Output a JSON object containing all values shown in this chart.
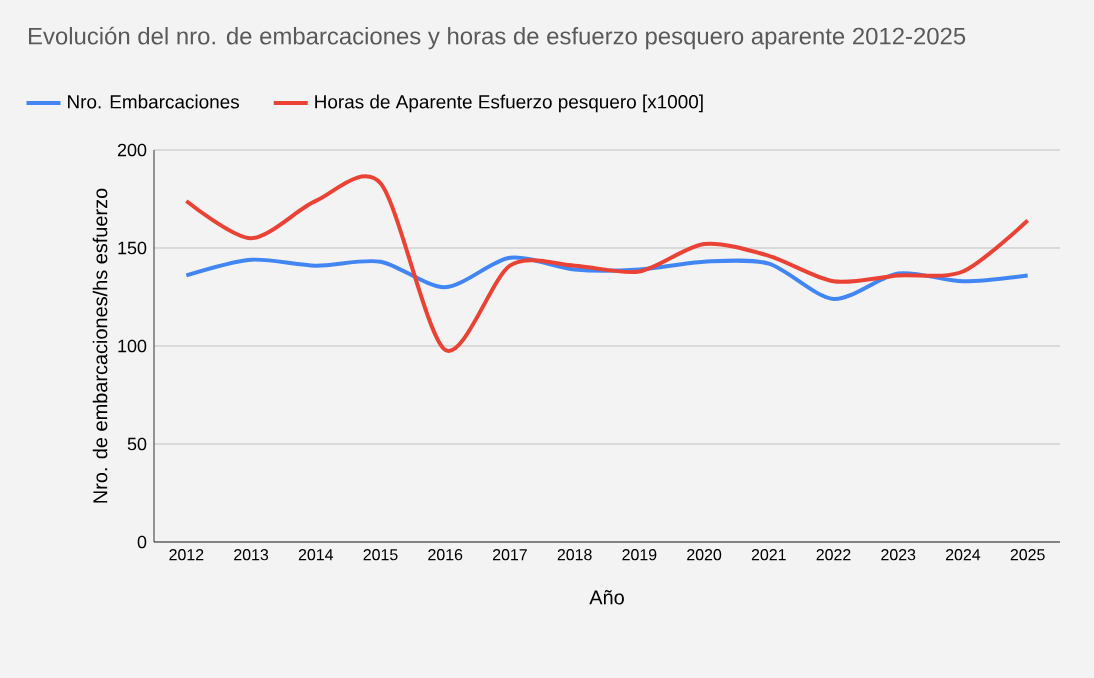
{
  "chart_data": {
    "type": "line",
    "title": "Evolución del nro. de embarcaciones y horas de esfuerzo pesquero aparente 2012-2025",
    "xlabel": "Año",
    "ylabel": "Nro. de embarcaciones/hs esfuerzo",
    "categories": [
      "2012",
      "2013",
      "2014",
      "2015",
      "2016",
      "2017",
      "2018",
      "2019",
      "2020",
      "2021",
      "2022",
      "2023",
      "2024",
      "2025"
    ],
    "series": [
      {
        "name": "Nro. Embarcaciones",
        "color": "#4285f4",
        "values": [
          136,
          144,
          141,
          143,
          130,
          145,
          139,
          139,
          143,
          142,
          124,
          137,
          133,
          136
        ]
      },
      {
        "name": "Horas de Aparente Esfuerzo pesquero [x1000]",
        "color": "#ea4335",
        "values": [
          174,
          155,
          174,
          183,
          98,
          141,
          141,
          138,
          152,
          146,
          133,
          136,
          138,
          164
        ]
      }
    ],
    "ylim": [
      0,
      200
    ],
    "yticks": [
      0,
      50,
      100,
      150,
      200
    ],
    "grid": "y",
    "legend": "top left",
    "marker": "none",
    "line_style": "solid"
  }
}
